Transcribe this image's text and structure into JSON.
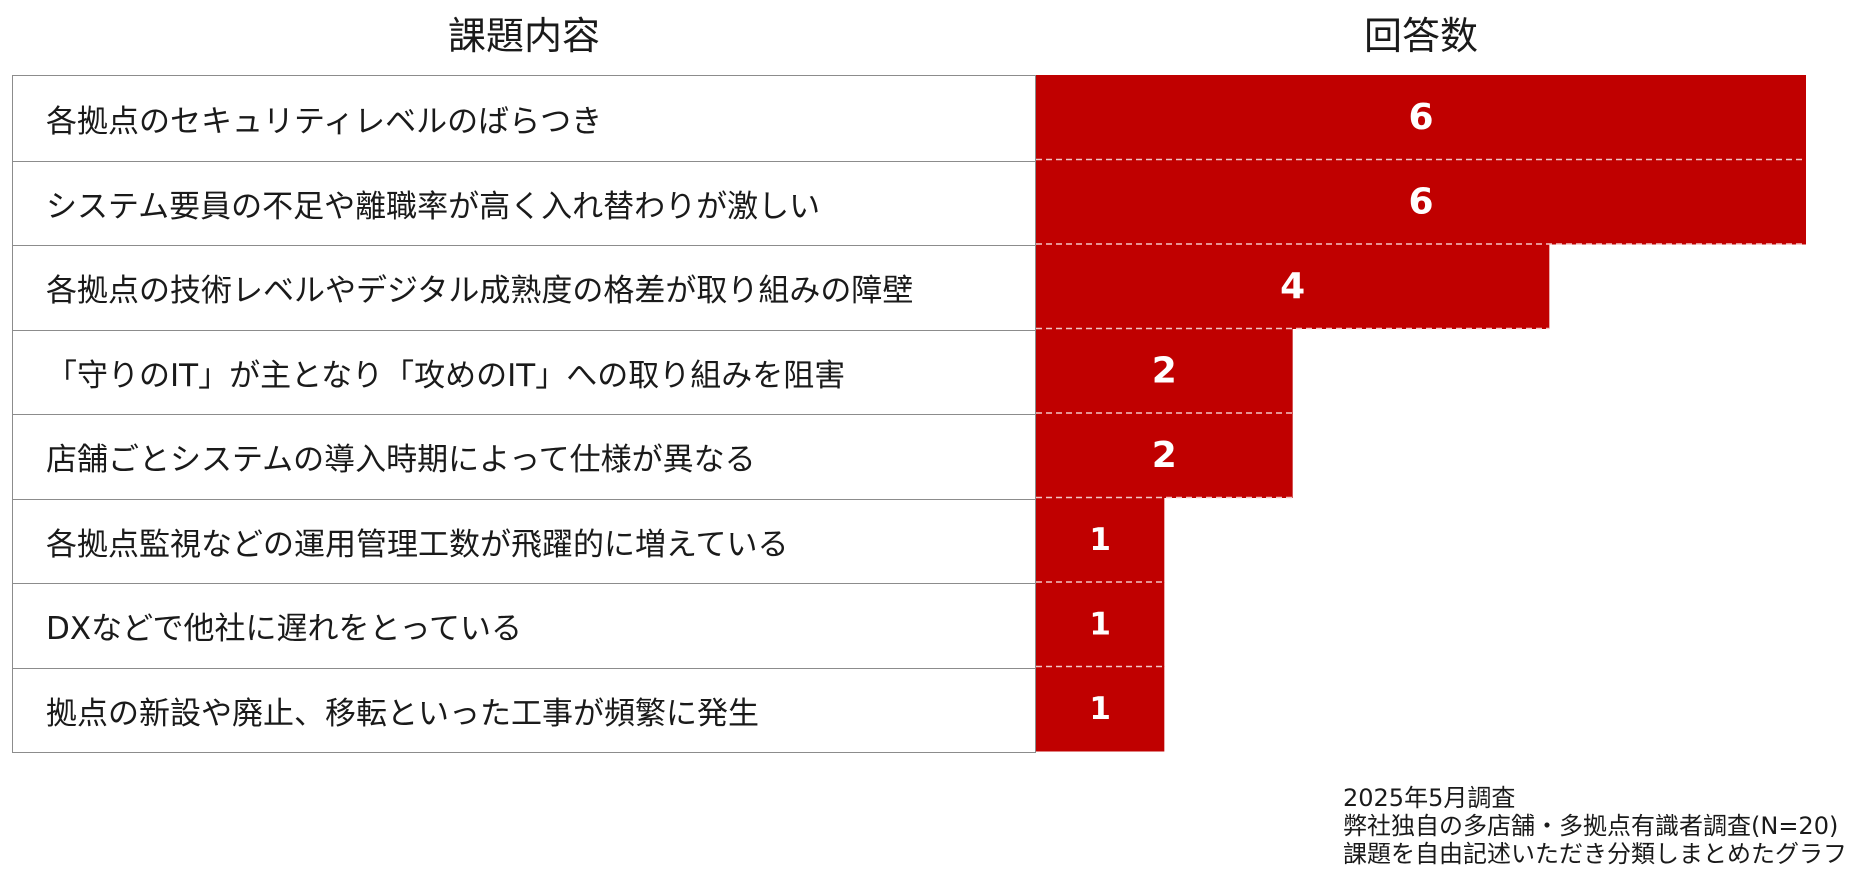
{
  "headers": {
    "left": "課題内容",
    "right": "回答数"
  },
  "chart_data": {
    "type": "bar",
    "orientation": "horizontal",
    "categories": [
      "各拠点のセキュリティレベルのばらつき",
      "システム要員の不足や離職率が高く入れ替わりが激しい",
      "各拠点の技術レベルやデジタル成熟度の格差が取り組みの障壁",
      "「守りのIT」が主となり「攻めのIT」への取り組みを阻害",
      "店舗ごとシステムの導入時期によって仕様が異なる",
      "各拠点監視などの運用管理工数が飛躍的に増えている",
      "DXなどで他社に遅れをとっている",
      "拠点の新設や廃止、移転といった工事が頻繁に発生"
    ],
    "values": [
      6,
      6,
      4,
      2,
      2,
      1,
      1,
      1
    ],
    "xlim": [
      0,
      6
    ],
    "bar_color": "#c00000",
    "label_color": "#ffffff",
    "grid": false,
    "legend": "none"
  },
  "footnote": [
    "2025年5月調査",
    "弊社独自の多店舗・多拠点有識者調査(N=20)",
    "課題を自由記述いただき分類しまとめたグラフ"
  ]
}
